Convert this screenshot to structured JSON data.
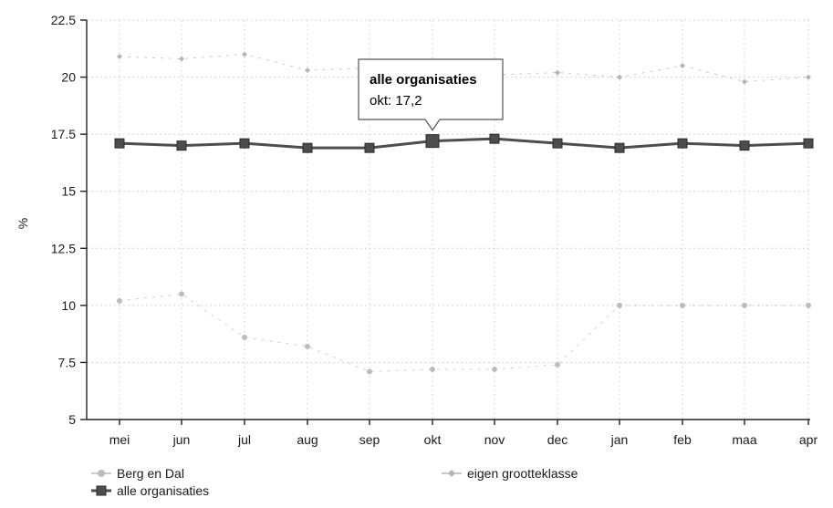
{
  "chart_data": {
    "type": "line",
    "title": "",
    "xlabel": "",
    "ylabel": "%",
    "categories": [
      "mei",
      "jun",
      "jul",
      "aug",
      "sep",
      "okt",
      "nov",
      "dec",
      "jan",
      "feb",
      "maa",
      "apr"
    ],
    "ylim": [
      5,
      22.5
    ],
    "yticks": [
      "5",
      "7.5",
      "10",
      "12.5",
      "15",
      "17.5",
      "20",
      "22.5"
    ],
    "grid": true,
    "legend_position": "bottom-left",
    "series": [
      {
        "name": "Berg en Dal",
        "color": "#bcbcbc",
        "marker": "circle",
        "values": [
          10.2,
          10.5,
          8.6,
          8.2,
          7.1,
          7.2,
          7.2,
          7.4,
          10.0,
          10.0,
          10.0,
          10.0
        ]
      },
      {
        "name": "eigen grootteklasse",
        "color": "#b4b4b4",
        "marker": "diamond",
        "values": [
          20.9,
          20.8,
          21.0,
          20.3,
          20.4,
          20.3,
          20.1,
          20.2,
          20.0,
          20.5,
          19.8,
          20.0
        ]
      },
      {
        "name": "alle organisaties",
        "color": "#4d4d4d",
        "marker": "square",
        "values": [
          17.1,
          17.0,
          17.1,
          16.9,
          16.9,
          17.2,
          17.3,
          17.1,
          16.9,
          17.1,
          17.0,
          17.1
        ]
      }
    ],
    "tooltip": {
      "series": "alle organisaties",
      "category": "okt",
      "title": "alle organisaties",
      "text": "okt: 17,2"
    }
  }
}
